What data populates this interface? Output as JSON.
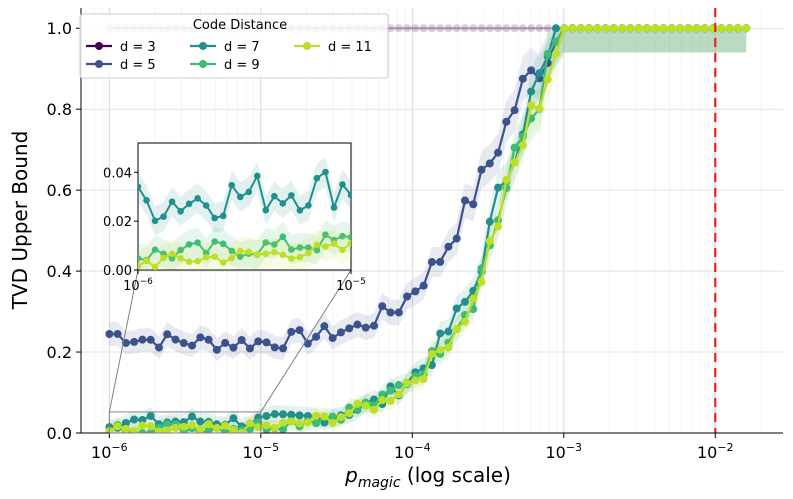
{
  "chart_data": {
    "type": "line",
    "xscale": "log",
    "xlabel_main": "p",
    "xlabel_sub": "magic",
    "xlabel_rest": " (log scale)",
    "ylabel": "TVD Upper Bound",
    "xlim": [
      6.5e-07,
      0.028
    ],
    "ylim": [
      0.0,
      1.05
    ],
    "y_ticks": [
      "0.0",
      "0.2",
      "0.4",
      "0.6",
      "0.8",
      "1.0"
    ],
    "y_tick_values": [
      0.0,
      0.2,
      0.4,
      0.6,
      0.8,
      1.0
    ],
    "x_tick_exponents": [
      -6,
      -5,
      -4,
      -3,
      -2
    ],
    "x_tick_base": "10",
    "threshold_x": 0.01,
    "threshold_color": "#e8231f",
    "legend_title": "Code Distance",
    "series": [
      {
        "name": "d = 3",
        "color": "#440154",
        "values": [
          1,
          1,
          1,
          1,
          1,
          1,
          1,
          1,
          1,
          1
        ]
      },
      {
        "name": "d = 5",
        "color": "#3b528b",
        "values": [
          0.245,
          0.23,
          0.225,
          0.222,
          0.225,
          0.24,
          0.26,
          0.31,
          0.43,
          0.62,
          0.85,
          1.0
        ]
      },
      {
        "name": "d = 7",
        "color": "#21908d",
        "values": [
          0.028,
          0.027,
          0.03,
          0.028,
          0.033,
          0.045,
          0.08,
          0.17,
          0.35,
          0.75,
          1.0
        ]
      },
      {
        "name": "d = 9",
        "color": "#3dbc74",
        "values": [
          0.01,
          0.012,
          0.012,
          0.015,
          0.025,
          0.045,
          0.08,
          0.17,
          0.33,
          0.7,
          1.0
        ]
      },
      {
        "name": "d = 11",
        "color": "#bddf26",
        "values": [
          0.005,
          0.006,
          0.008,
          0.01,
          0.02,
          0.04,
          0.075,
          0.16,
          0.32,
          0.69,
          1.0
        ]
      }
    ],
    "inset": {
      "xlim": [
        1e-06,
        1e-05
      ],
      "ylim": [
        0.0,
        0.052
      ],
      "y_ticks": [
        "0.00",
        "0.02",
        "0.04"
      ],
      "y_tick_values": [
        0.0,
        0.02,
        0.04
      ],
      "x_tick_exponents": [
        -6,
        -5
      ]
    }
  }
}
